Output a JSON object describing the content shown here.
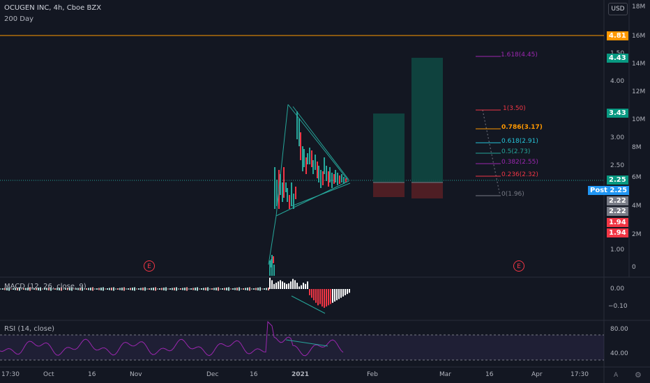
{
  "header": {
    "title": "OCUGEN INC, 4h, Cboe BZX",
    "indicator": "200 Day",
    "currency_button": "USD"
  },
  "price_axis": {
    "ticks": [
      "1.00",
      "1.50",
      "2.00",
      "2.50",
      "3.00",
      "4.00"
    ],
    "badges": [
      {
        "text": "4.81",
        "color": "#ff9800"
      },
      {
        "text": "4.43",
        "color": "#089981"
      },
      {
        "text": "3.43",
        "color": "#089981"
      },
      {
        "text": "2.25",
        "color": "#089981"
      },
      {
        "text": "2.25",
        "color": "#2196f3",
        "prefix": "Post"
      },
      {
        "text": "2.22",
        "color": "#787b86"
      },
      {
        "text": "2.22",
        "color": "#787b86"
      },
      {
        "text": "1.94",
        "color": "#f23645"
      },
      {
        "text": "1.94",
        "color": "#f23645"
      }
    ]
  },
  "volume_axis": {
    "ticks": [
      "18M",
      "16M",
      "14M",
      "12M",
      "10M",
      "8M",
      "6M",
      "4M",
      "2M",
      "0"
    ]
  },
  "fibonacci": [
    {
      "label": "1.618(4.45)",
      "color": "#9c27b0"
    },
    {
      "label": "1(3.50)",
      "color": "#f23645"
    },
    {
      "label": "0.786(3.17)",
      "color": "#ff9800"
    },
    {
      "label": "0.618(2.91)",
      "color": "#26c6da"
    },
    {
      "label": "0.5(2.73)",
      "color": "#26a69a"
    },
    {
      "label": "0.382(2.55)",
      "color": "#9c27b0"
    },
    {
      "label": "0.236(2.32)",
      "color": "#f23645"
    },
    {
      "label": "0(1.96)",
      "color": "#787b86"
    }
  ],
  "earnings_markers": [
    "E",
    "E"
  ],
  "macd": {
    "label": "MACD (12, 26, close, 9)",
    "ticks": [
      "0.00",
      "−0.10"
    ]
  },
  "rsi": {
    "label": "RSI (14, close)",
    "ticks": [
      "80.00",
      "40.00"
    ]
  },
  "time_axis": {
    "ticks": [
      "17:30",
      "Oct",
      "16",
      "Nov",
      "Dec",
      "16",
      "2021",
      "Feb",
      "Mar",
      "16",
      "Apr",
      "17:30"
    ]
  },
  "corner": {
    "auto": "A",
    "settings": "gear-icon"
  },
  "chart_data": {
    "type": "candlestick",
    "symbol": "OCUGEN INC",
    "interval": "4h",
    "exchange": "Cboe BZX",
    "horizontal_lines": [
      4.81
    ],
    "last_price": 2.25,
    "post_market_price": 2.25,
    "long_position_targets": [
      3.43,
      4.43
    ],
    "stop": 1.94,
    "entry": 2.22,
    "pattern": "symmetrical triangle",
    "fib_levels": [
      {
        "ratio": 1.618,
        "price": 4.45
      },
      {
        "ratio": 1,
        "price": 3.5
      },
      {
        "ratio": 0.786,
        "price": 3.17
      },
      {
        "ratio": 0.618,
        "price": 2.91
      },
      {
        "ratio": 0.5,
        "price": 2.73
      },
      {
        "ratio": 0.382,
        "price": 2.55
      },
      {
        "ratio": 0.236,
        "price": 2.32
      },
      {
        "ratio": 0,
        "price": 1.96
      }
    ],
    "rsi_bands": [
      80,
      40
    ]
  }
}
